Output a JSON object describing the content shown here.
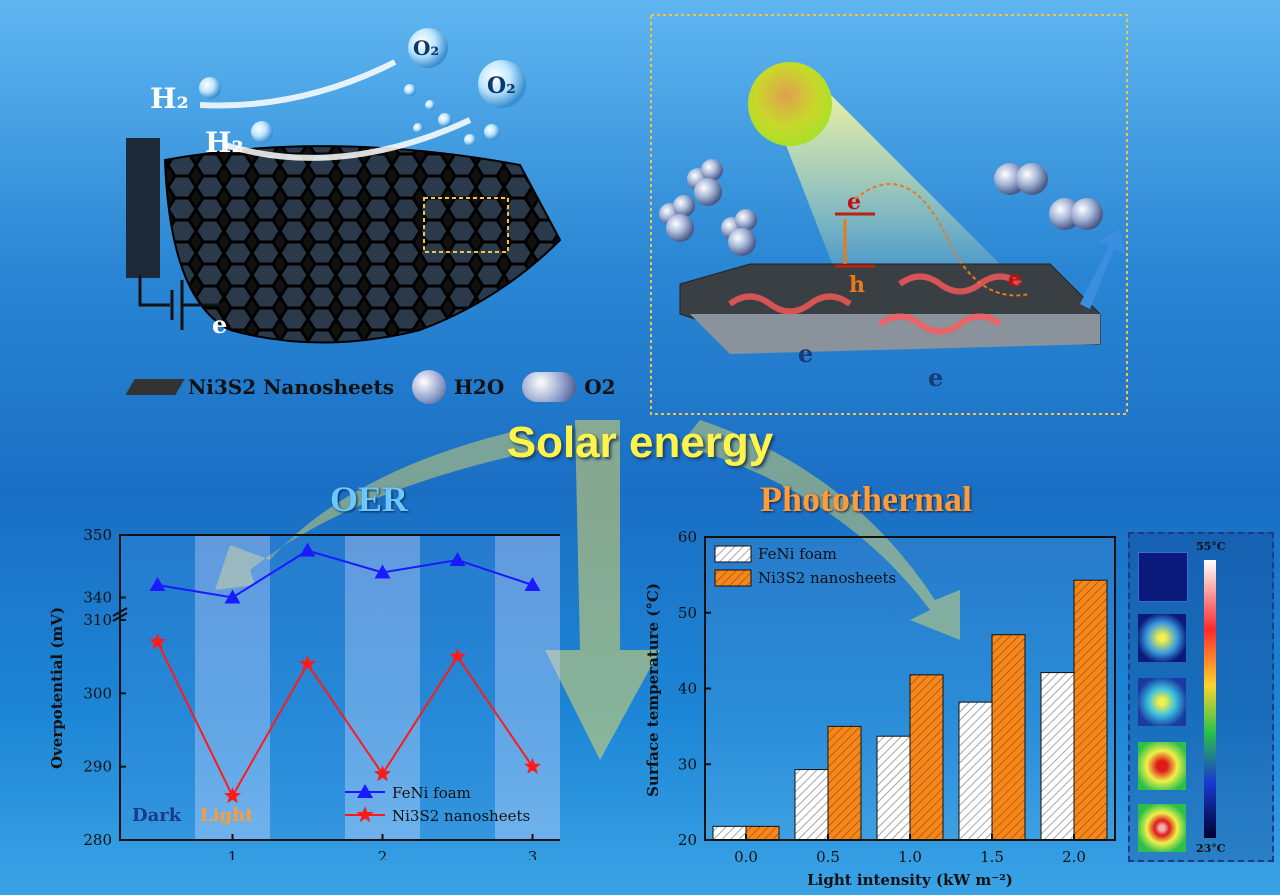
{
  "labels": {
    "solar_energy": "Solar energy",
    "oer": "OER",
    "photothermal": "Photothermal",
    "legend_nanosheets": "Ni3S2 Nanosheets",
    "legend_h2o": "H2O",
    "legend_o2": "O2",
    "electron": "e",
    "hole": "h",
    "scale_max": "55°C",
    "scale_min": "23°C"
  },
  "colors": {
    "solar_title": "#fff44a",
    "oer_title": "#69c8ff",
    "photothermal_title": "#ff9c3a",
    "fenifoam_line": "#1a1aff",
    "ni3s2_line": "#ff1a1a",
    "bar_orange": "#f7871a"
  },
  "chart_data": [
    {
      "type": "line",
      "xlabel": "",
      "ylabel": "Overpotential (mV)",
      "x_ticks": [
        "1",
        "2",
        "3"
      ],
      "y_ticks_upper": [
        340,
        350
      ],
      "y_ticks_lower": [
        280,
        290,
        300,
        310
      ],
      "y_tick_labels_lower": [
        "280",
        "290",
        "300",
        "310"
      ],
      "axis_break": "between 310 and 340",
      "bands": [
        "Dark",
        "Light",
        "Dark",
        "Light",
        "Dark",
        "Light"
      ],
      "band_labels": [
        "Dark",
        "Light"
      ],
      "x": [
        0.5,
        1.0,
        1.5,
        2.0,
        2.5,
        3.0
      ],
      "series": [
        {
          "name": "FeNi foam",
          "marker": "triangle",
          "values": [
            342,
            340,
            347.5,
            344,
            346,
            342
          ]
        },
        {
          "name": "Ni3S2 nanosheets",
          "marker": "star",
          "values": [
            307,
            286,
            304,
            289,
            305,
            290
          ]
        }
      ],
      "legend": "bottom-right"
    },
    {
      "type": "bar",
      "xlabel": "Light intensity (kW m⁻²)",
      "ylabel": "Surface temperature (°C)",
      "categories": [
        "0.0",
        "0.5",
        "1.0",
        "1.5",
        "2.0"
      ],
      "ylim": [
        20,
        60
      ],
      "y_ticks": [
        20,
        30,
        40,
        50,
        60
      ],
      "series": [
        {
          "name": "FeNi foam",
          "values": [
            21.8,
            29.3,
            33.7,
            38.2,
            42.1
          ]
        },
        {
          "name": "Ni3S2 nanosheets",
          "values": [
            21.8,
            35.0,
            41.8,
            47.1,
            54.3
          ]
        }
      ],
      "legend": "top-left"
    }
  ]
}
